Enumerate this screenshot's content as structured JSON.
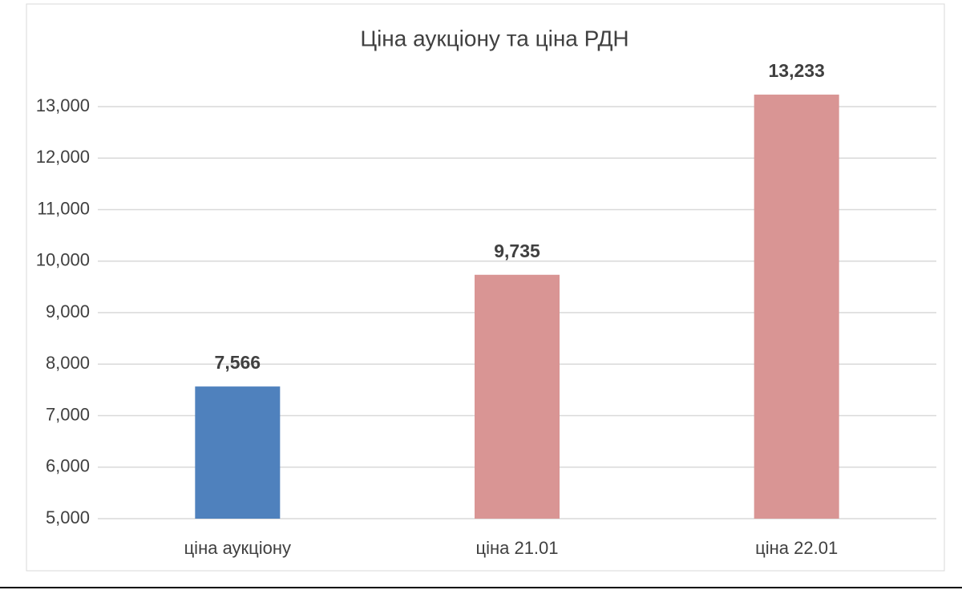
{
  "chart_data": {
    "type": "bar",
    "title": "Ціна аукціону та ціна РДН",
    "categories": [
      "ціна аукціону",
      "ціна 21.01",
      "ціна 22.01"
    ],
    "values": [
      7566,
      9735,
      13233
    ],
    "value_labels": [
      "7,566",
      "9,735",
      "13,233"
    ],
    "colors": [
      "#4f81bd",
      "#d99594",
      "#d99594"
    ],
    "ylim": [
      5000,
      13000
    ],
    "yticks": [
      {
        "value": 5000,
        "label": "5,000"
      },
      {
        "value": 6000,
        "label": "6,000"
      },
      {
        "value": 7000,
        "label": "7,000"
      },
      {
        "value": 8000,
        "label": "8,000"
      },
      {
        "value": 9000,
        "label": "9,000"
      },
      {
        "value": 10000,
        "label": "10,000"
      },
      {
        "value": 11000,
        "label": "11,000"
      },
      {
        "value": 12000,
        "label": "12,000"
      },
      {
        "value": 13000,
        "label": "13,000"
      }
    ],
    "grid": true
  }
}
